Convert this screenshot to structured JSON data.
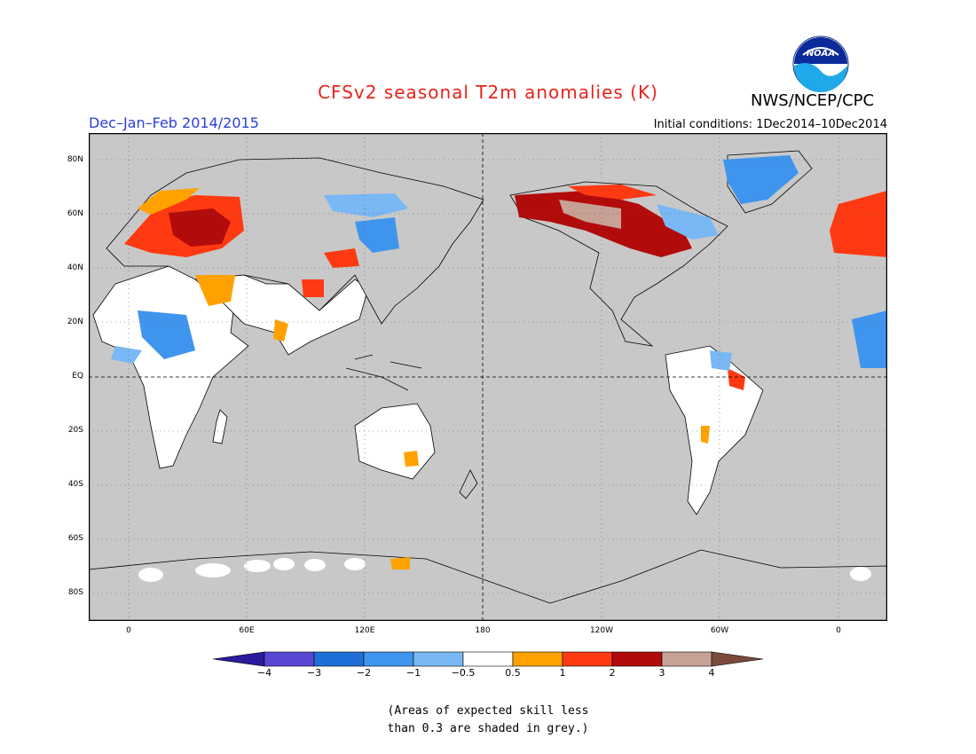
{
  "title": "CFSv2 seasonal T2m anomalies (K)",
  "agency": "NWS/NCEP/CPC",
  "logo_text": "NOAA",
  "season": "Dec–Jan–Feb 2014/2015",
  "initial_conditions": "Initial conditions: 1Dec2014–10Dec2014",
  "lat_ticks": [
    "80N",
    "60N",
    "40N",
    "20N",
    "EQ",
    "20S",
    "40S",
    "60S",
    "80S"
  ],
  "lon_ticks": [
    "0",
    "60E",
    "120E",
    "180",
    "120W",
    "60W",
    "0"
  ],
  "colorbar": {
    "labels": [
      "−4",
      "−3",
      "−2",
      "−1",
      "−0.5",
      "0.5",
      "1",
      "2",
      "3",
      "4"
    ],
    "colors": [
      "#2a1a9c",
      "#5747d3",
      "#1f6fd6",
      "#3f95ee",
      "#79b8f4",
      "#ffffff",
      "#ffa200",
      "#ff3a12",
      "#b20b0b",
      "#c7a096",
      "#7b4a3c"
    ]
  },
  "note_line1": "(Areas of expected skill less",
  "note_line2": "than 0.3 are shaded in grey.)",
  "colors": {
    "skill_grey": "#c8c8c8",
    "title_red": "#e8241c",
    "season_blue": "#2b3fd6"
  }
}
